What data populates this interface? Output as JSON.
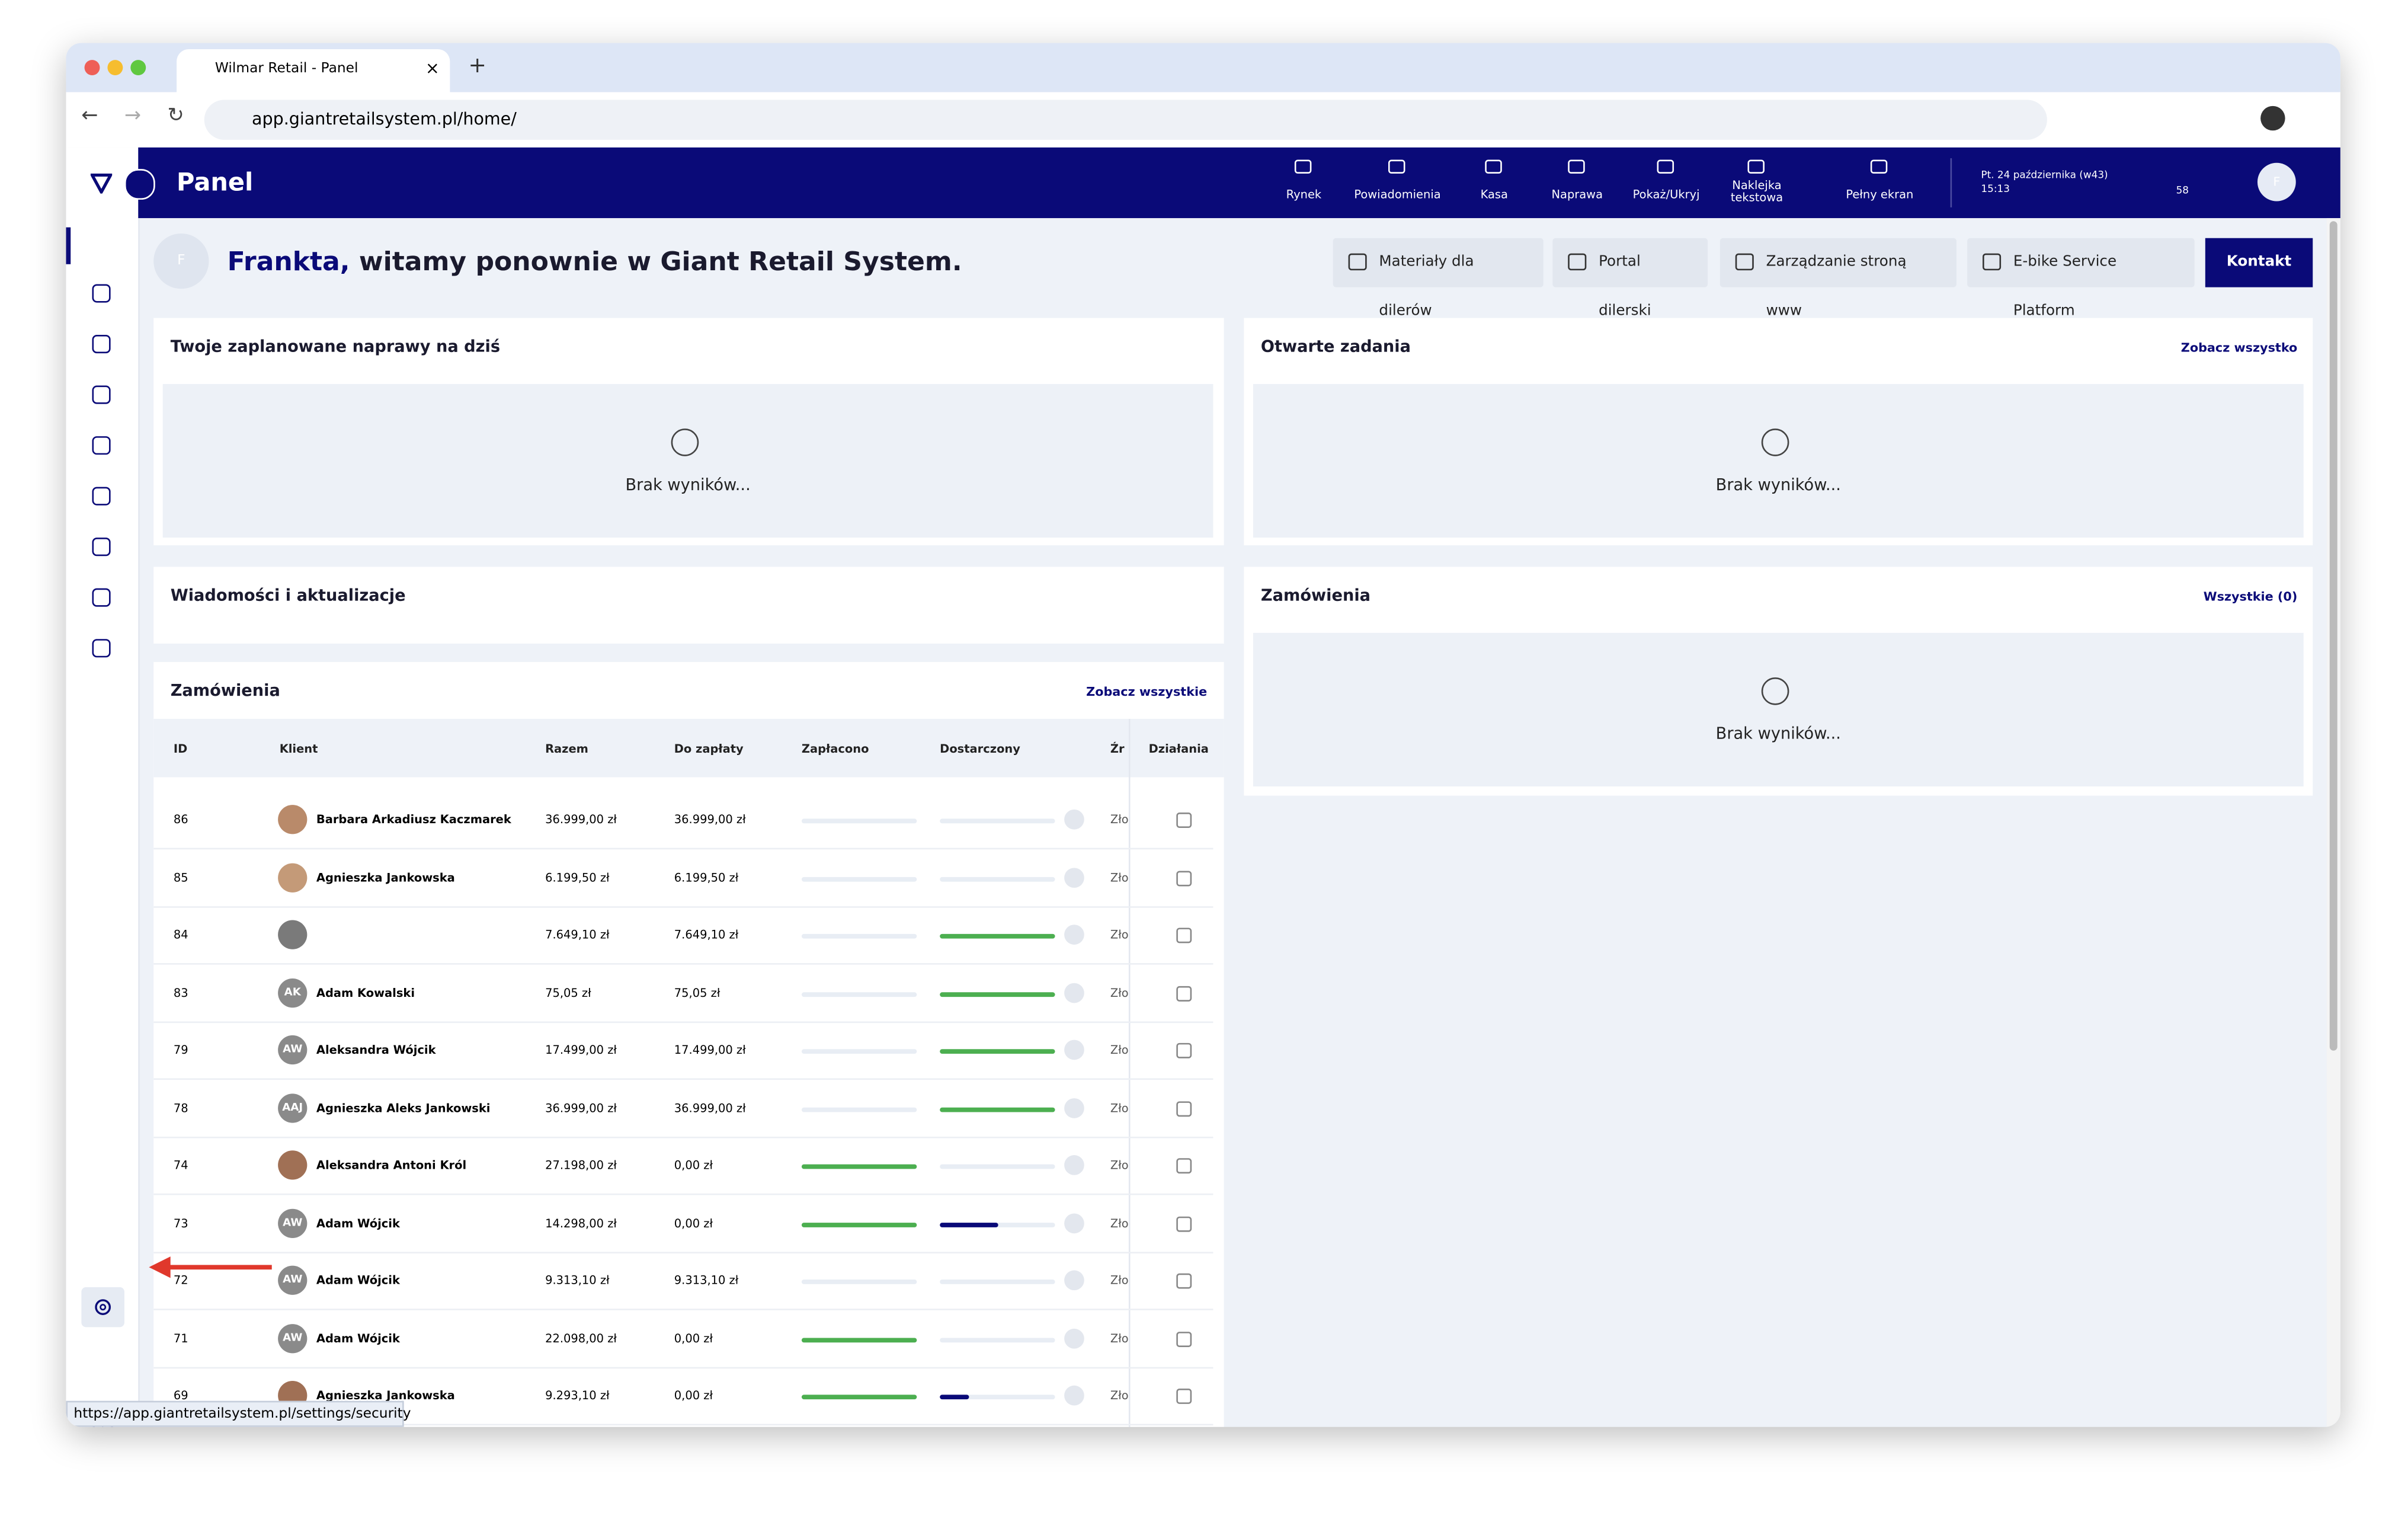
{
  "browser": {
    "tab_title": "Wilmar Retail - Panel",
    "url": "app.giantretailsystem.pl/home/",
    "status_url": "https://app.giantretailsystem.pl/settings/security"
  },
  "header": {
    "title": "Panel",
    "nav": [
      "Rynek",
      "Powiadomienia",
      "Kasa",
      "Naprawa",
      "Pokaż/Ukryj",
      "Naklejka tekstowa",
      "Pełny ekran"
    ],
    "date": "Pt. 24 października (w43)",
    "time": "15:13",
    "lock_count": "58",
    "avatar": "F"
  },
  "welcome": {
    "avatar": "F",
    "name": "Frankta,",
    "text": "witamy ponownie w Giant Retail System.",
    "buttons": [
      "Materiały dla dilerów",
      "Portal dilerski",
      "Zarządzanie stroną www",
      "E-bike Service Platform"
    ],
    "primary_button": "Kontakt"
  },
  "repairs": {
    "title": "Twoje zaplanowane naprawy na dziś",
    "empty": "Brak wyników..."
  },
  "tasks": {
    "title": "Otwarte zadania",
    "link": "Zobacz wszystko",
    "empty": "Brak wyników..."
  },
  "news": {
    "title": "Wiadomości i aktualizacje"
  },
  "orders_right": {
    "title": "Zamówienia",
    "link": "Wszystkie (0)",
    "empty": "Brak wyników..."
  },
  "orders": {
    "title": "Zamówienia",
    "link": "Zobacz wszystkie",
    "columns": [
      "ID",
      "Klient",
      "Razem",
      "Do zapłaty",
      "Zapłacono",
      "Dostarczony",
      "Źr",
      "Działania"
    ],
    "rows": [
      {
        "id": "86",
        "initials": null,
        "client": "Barbara Arkadiusz Kaczmarek",
        "total": "36.999,00 zł",
        "due": "36.999,00 zł",
        "paid": 0,
        "delivered": 0,
        "source": "Zło"
      },
      {
        "id": "85",
        "initials": null,
        "client": "Agnieszka Jankowska",
        "total": "6.199,50 zł",
        "due": "6.199,50 zł",
        "paid": 0,
        "delivered": 0,
        "source": "Zło"
      },
      {
        "id": "84",
        "initials": null,
        "client": null,
        "total": "7.649,10 zł",
        "due": "7.649,10 zł",
        "paid": 0,
        "delivered": 1,
        "source": "Zło"
      },
      {
        "id": "83",
        "initials": "AK",
        "client": "Adam Kowalski",
        "total": "75,05 zł",
        "due": "75,05 zł",
        "paid": 0,
        "delivered": 1,
        "source": "Zło"
      },
      {
        "id": "79",
        "initials": "AW",
        "client": "Aleksandra Wójcik",
        "total": "17.499,00 zł",
        "due": "17.499,00 zł",
        "paid": 0,
        "delivered": 1,
        "source": "Zło"
      },
      {
        "id": "78",
        "initials": "AAJ",
        "client": "Agnieszka Aleks Jankowski",
        "total": "36.999,00 zł",
        "due": "36.999,00 zł",
        "paid": 0,
        "delivered": 1,
        "source": "Zło"
      },
      {
        "id": "74",
        "initials": null,
        "client": "Aleksandra Antoni Król",
        "total": "27.198,00 zł",
        "due": "0,00 zł",
        "paid": 1,
        "delivered": 0,
        "source": "Zło"
      },
      {
        "id": "73",
        "initials": "AW",
        "client": "Adam Wójcik",
        "total": "14.298,00 zł",
        "due": "0,00 zł",
        "paid": 1,
        "delivered": 0.5,
        "source": "Zło"
      },
      {
        "id": "72",
        "initials": "AW",
        "client": "Adam Wójcik",
        "total": "9.313,10 zł",
        "due": "9.313,10 zł",
        "paid": 0,
        "delivered": 0,
        "source": "Zło"
      },
      {
        "id": "71",
        "initials": "AW",
        "client": "Adam Wójcik",
        "total": "22.098,00 zł",
        "due": "0,00 zł",
        "paid": 1,
        "delivered": 0,
        "source": "Zło"
      },
      {
        "id": "69",
        "initials": null,
        "client": "Agnieszka Jankowska",
        "total": "9.293,10 zł",
        "due": "0,00 zł",
        "paid": 1,
        "delivered": 0.25,
        "source": "Zło"
      }
    ]
  }
}
